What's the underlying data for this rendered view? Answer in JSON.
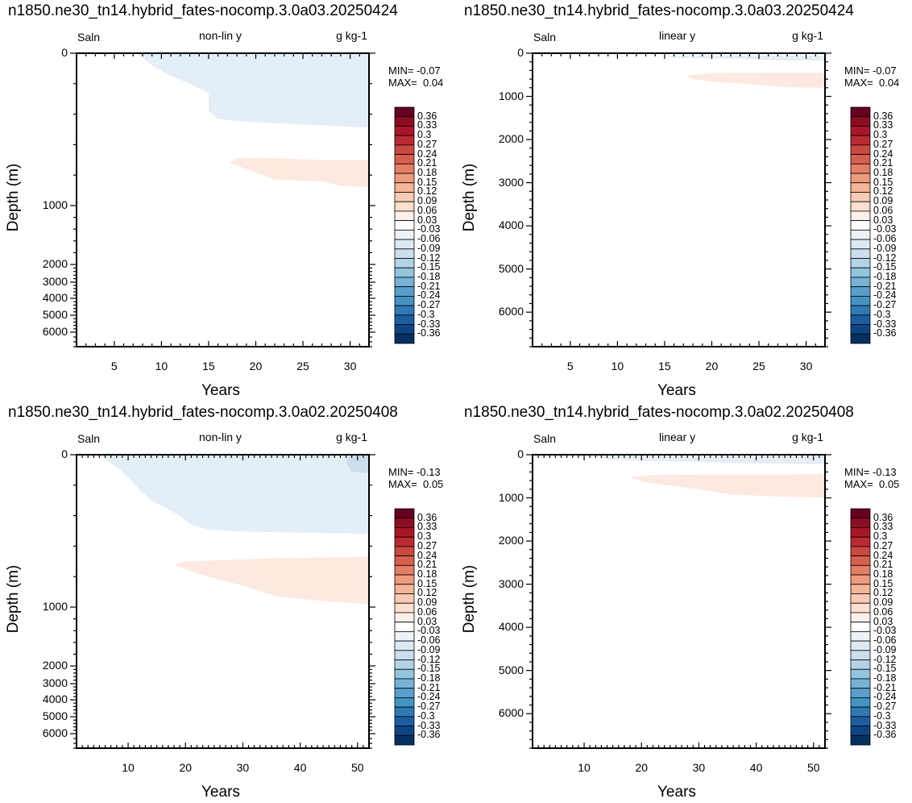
{
  "colorbar": {
    "labels": [
      "0.36",
      "0.33",
      "0.3",
      "0.27",
      "0.24",
      "0.21",
      "0.18",
      "0.15",
      "0.12",
      "0.09",
      "0.06",
      "0.03",
      "-0.03",
      "-0.06",
      "-0.09",
      "-0.12",
      "-0.15",
      "-0.18",
      "-0.21",
      "-0.24",
      "-0.27",
      "-0.3",
      "-0.33",
      "-0.36"
    ],
    "colors": [
      "#67001f",
      "#8e0b23",
      "#ab1529",
      "#bb2a33",
      "#c9483f",
      "#d6604d",
      "#e27f66",
      "#ee9a7d",
      "#f4b598",
      "#f9cbb2",
      "#fbdfcf",
      "#fcf1ea",
      "#ffffff",
      "#ecf3f8",
      "#dde9f2",
      "#cadeec",
      "#b3d3e7",
      "#92c5de",
      "#76b2d5",
      "#5a9fcb",
      "#4393c3",
      "#2f79b5",
      "#1c5fa0",
      "#0b4585",
      "#053061"
    ]
  },
  "chart_data": [
    {
      "type": "heatmap",
      "title": "n1850.ne30_tn14.hybrid_fates-nocomp.3.0a03.20250424",
      "left_label": "Saln",
      "center_label": "non-lin y",
      "units": "g kg-1",
      "xlabel": "Years",
      "ylabel": "Depth (m)",
      "xlim": [
        1,
        32
      ],
      "ylim": [
        0,
        6600
      ],
      "y_scale": "non-linear",
      "xticks": [
        "5",
        "10",
        "15",
        "20",
        "25",
        "30"
      ],
      "yticks": [
        "0",
        "1000",
        "2000",
        "3000",
        "4000",
        "5000",
        "6000"
      ],
      "min_text": "MIN= -0.07",
      "max_text": "MAX=  0.04",
      "fields": [
        {
          "sign": "negative",
          "color": "#e3eef6",
          "points": [
            [
              7.5,
              0
            ],
            [
              32,
              0
            ],
            [
              32,
              490
            ],
            [
              28,
              475
            ],
            [
              22,
              460
            ],
            [
              18,
              445
            ],
            [
              16,
              430
            ],
            [
              15,
              380
            ],
            [
              15,
              260
            ],
            [
              13,
              200
            ],
            [
              11,
              150
            ],
            [
              9,
              80
            ],
            [
              8,
              30
            ]
          ]
        },
        {
          "sign": "positive",
          "color": "#fde9df",
          "points": [
            [
              17.2,
              720
            ],
            [
              18,
              690
            ],
            [
              22,
              690
            ],
            [
              27,
              700
            ],
            [
              32,
              700
            ],
            [
              32,
              880
            ],
            [
              29,
              870
            ],
            [
              27,
              840
            ],
            [
              22,
              830
            ],
            [
              19,
              760
            ]
          ]
        }
      ]
    },
    {
      "type": "heatmap",
      "title": "n1850.ne30_tn14.hybrid_fates-nocomp.3.0a03.20250424",
      "left_label": "Saln",
      "center_label": "linear y",
      "units": "g kg-1",
      "xlabel": "Years",
      "ylabel": "Depth (m)",
      "xlim": [
        1,
        32
      ],
      "ylim": [
        0,
        6800
      ],
      "y_scale": "linear",
      "xticks": [
        "5",
        "10",
        "15",
        "20",
        "25",
        "30"
      ],
      "yticks": [
        "0",
        "1000",
        "2000",
        "3000",
        "4000",
        "5000",
        "6000"
      ],
      "min_text": "MIN= -0.07",
      "max_text": "MAX=  0.04",
      "fields": [
        {
          "sign": "negative",
          "color": "#e3eef6",
          "points": [
            [
              15,
              70
            ],
            [
              20,
              60
            ],
            [
              26,
              50
            ],
            [
              32,
              60
            ],
            [
              32,
              170
            ],
            [
              28,
              170
            ],
            [
              24,
              140
            ],
            [
              20,
              120
            ],
            [
              16,
              110
            ]
          ]
        },
        {
          "sign": "positive",
          "color": "#fde9df",
          "points": [
            [
              17.3,
              520
            ],
            [
              20,
              460
            ],
            [
              26,
              450
            ],
            [
              32,
              450
            ],
            [
              32,
              800
            ],
            [
              28,
              790
            ],
            [
              25,
              730
            ],
            [
              20,
              660
            ],
            [
              18,
              600
            ]
          ]
        }
      ]
    },
    {
      "type": "heatmap",
      "title": "n1850.ne30_tn14.hybrid_fates-nocomp.3.0a02.20250408",
      "left_label": "Saln",
      "center_label": "non-lin y",
      "units": "g kg-1",
      "xlabel": "Years",
      "ylabel": "Depth (m)",
      "xlim": [
        1,
        52
      ],
      "ylim": [
        0,
        6600
      ],
      "y_scale": "non-linear",
      "xticks": [
        "10",
        "20",
        "30",
        "40",
        "50"
      ],
      "yticks": [
        "0",
        "1000",
        "2000",
        "3000",
        "4000",
        "5000",
        "6000"
      ],
      "min_text": "MIN= -0.13",
      "max_text": "MAX=  0.05",
      "fields": [
        {
          "sign": "negative",
          "color": "#e3eef6",
          "points": [
            [
              5.5,
              0
            ],
            [
              52,
              0
            ],
            [
              52,
              520
            ],
            [
              46,
              515
            ],
            [
              38,
              510
            ],
            [
              30,
              505
            ],
            [
              24,
              490
            ],
            [
              21,
              460
            ],
            [
              19,
              400
            ],
            [
              17,
              360
            ],
            [
              14,
              300
            ],
            [
              12,
              230
            ],
            [
              10,
              150
            ],
            [
              8,
              80
            ],
            [
              6,
              30
            ]
          ]
        },
        {
          "sign": "negative-strong",
          "color": "#cadfed",
          "points": [
            [
              48.5,
              0
            ],
            [
              52,
              0
            ],
            [
              52,
              120
            ],
            [
              49,
              110
            ],
            [
              48,
              50
            ]
          ]
        },
        {
          "sign": "positive",
          "color": "#fde9df",
          "points": [
            [
              18,
              720
            ],
            [
              20,
              700
            ],
            [
              28,
              690
            ],
            [
              36,
              680
            ],
            [
              52,
              670
            ],
            [
              52,
              980
            ],
            [
              44,
              960
            ],
            [
              36,
              930
            ],
            [
              30,
              860
            ],
            [
              22,
              780
            ]
          ]
        }
      ]
    },
    {
      "type": "heatmap",
      "title": "n1850.ne30_tn14.hybrid_fates-nocomp.3.0a02.20250408",
      "left_label": "Saln",
      "center_label": "linear y",
      "units": "g kg-1",
      "xlabel": "Years",
      "ylabel": "Depth (m)",
      "xlim": [
        1,
        52
      ],
      "ylim": [
        0,
        6800
      ],
      "y_scale": "linear",
      "xticks": [
        "10",
        "20",
        "30",
        "40",
        "50"
      ],
      "yticks": [
        "0",
        "1000",
        "2000",
        "3000",
        "4000",
        "5000",
        "6000"
      ],
      "min_text": "MIN= -0.13",
      "max_text": "MAX=  0.05",
      "fields": [
        {
          "sign": "negative",
          "color": "#e3eef6",
          "points": [
            [
              12,
              60
            ],
            [
              24,
              50
            ],
            [
              40,
              40
            ],
            [
              52,
              40
            ],
            [
              52,
              220
            ],
            [
              44,
              210
            ],
            [
              36,
              190
            ],
            [
              28,
              160
            ],
            [
              20,
              140
            ],
            [
              14,
              110
            ]
          ]
        },
        {
          "sign": "positive",
          "color": "#fde9df",
          "points": [
            [
              18,
              520
            ],
            [
              22,
              470
            ],
            [
              30,
              460
            ],
            [
              40,
              460
            ],
            [
              52,
              450
            ],
            [
              52,
              990
            ],
            [
              44,
              970
            ],
            [
              36,
              930
            ],
            [
              30,
              800
            ],
            [
              24,
              700
            ],
            [
              20,
              620
            ]
          ]
        }
      ]
    }
  ]
}
